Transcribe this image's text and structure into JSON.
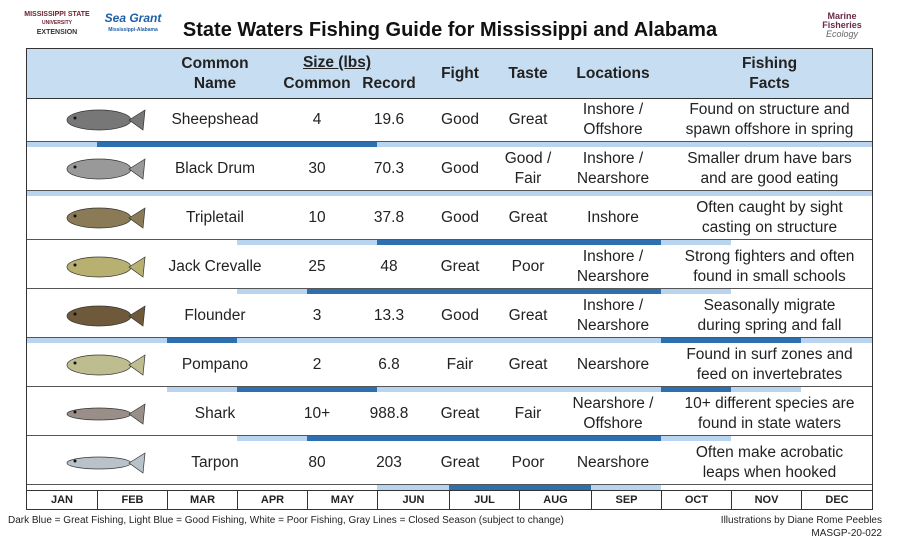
{
  "header": {
    "logo_left": [
      "MISSISSIPPI STATE",
      "UNIVERSITY",
      "EXTENSION"
    ],
    "logo_mid": [
      "Sea Grant",
      "Mississippi-Alabama"
    ],
    "title": "State Waters Fishing Guide for Mississippi and Alabama",
    "logo_right": [
      "Marine",
      "Fisheries",
      "Ecology"
    ]
  },
  "table": {
    "columns": {
      "name": "Common\nName",
      "size": "Size (lbs)",
      "common": "Common",
      "record": "Record",
      "fight": "Fight",
      "taste": "Taste",
      "locations": "Locations",
      "facts": "Fishing\nFacts"
    },
    "rows": [
      {
        "name": "Sheepshead",
        "common": "4",
        "record": "19.6",
        "fight": "Good",
        "taste": "Great",
        "locations": "Inshore /\nOffshore",
        "facts": "Found on structure and\nspawn offshore in spring",
        "season": [
          "#b8d4ee",
          "#2e6fb0",
          "#2e6fb0",
          "#2e6fb0",
          "#2e6fb0",
          "#b8d4ee",
          "#b8d4ee",
          "#b8d4ee",
          "#b8d4ee",
          "#b8d4ee",
          "#b8d4ee",
          "#b8d4ee"
        ]
      },
      {
        "name": "Black Drum",
        "common": "30",
        "record": "70.3",
        "fight": "Good",
        "taste": "Good /\nFair",
        "locations": "Inshore /\nNearshore",
        "facts": "Smaller drum have bars\nand are good eating",
        "season": [
          "#b8d4ee",
          "#b8d4ee",
          "#b8d4ee",
          "#b8d4ee",
          "#b8d4ee",
          "#b8d4ee",
          "#b8d4ee",
          "#b8d4ee",
          "#b8d4ee",
          "#b8d4ee",
          "#b8d4ee",
          "#b8d4ee"
        ]
      },
      {
        "name": "Tripletail",
        "common": "10",
        "record": "37.8",
        "fight": "Good",
        "taste": "Great",
        "locations": "Inshore",
        "facts": "Often caught by sight\ncasting on structure",
        "season": [
          "#ffffff",
          "#ffffff",
          "#ffffff",
          "#b8d4ee",
          "#b8d4ee",
          "#2e6fb0",
          "#2e6fb0",
          "#2e6fb0",
          "#2e6fb0",
          "#b8d4ee",
          "#ffffff",
          "#ffffff"
        ]
      },
      {
        "name": "Jack Crevalle",
        "common": "25",
        "record": "48",
        "fight": "Great",
        "taste": "Poor",
        "locations": "Inshore /\nNearshore",
        "facts": "Strong fighters and often\nfound in small schools",
        "season": [
          "#ffffff",
          "#ffffff",
          "#ffffff",
          "#b8d4ee",
          "#2e6fb0",
          "#2e6fb0",
          "#2e6fb0",
          "#2e6fb0",
          "#2e6fb0",
          "#b8d4ee",
          "#ffffff",
          "#ffffff"
        ]
      },
      {
        "name": "Flounder",
        "common": "3",
        "record": "13.3",
        "fight": "Good",
        "taste": "Great",
        "locations": "Inshore /\nNearshore",
        "facts": "Seasonally migrate\nduring spring and fall",
        "season": [
          "#b8d4ee",
          "#b8d4ee",
          "#2e6fb0",
          "#b8d4ee",
          "#b8d4ee",
          "#b8d4ee",
          "#b8d4ee",
          "#b8d4ee",
          "#b8d4ee",
          "#2e6fb0",
          "#2e6fb0",
          "#b8d4ee"
        ]
      },
      {
        "name": "Pompano",
        "common": "2",
        "record": "6.8",
        "fight": "Fair",
        "taste": "Great",
        "locations": "Nearshore",
        "facts": "Found in surf zones and\nfeed on invertebrates",
        "season": [
          "#ffffff",
          "#ffffff",
          "#b8d4ee",
          "#2e6fb0",
          "#2e6fb0",
          "#b8d4ee",
          "#b8d4ee",
          "#b8d4ee",
          "#b8d4ee",
          "#2e6fb0",
          "#b8d4ee",
          "#ffffff"
        ]
      },
      {
        "name": "Shark",
        "common": "10+",
        "record": "988.8",
        "fight": "Great",
        "taste": "Fair",
        "locations": "Nearshore /\nOffshore",
        "facts": "10+ different species are\nfound in state waters",
        "season": [
          "#ffffff",
          "#ffffff",
          "#ffffff",
          "#b8d4ee",
          "#2e6fb0",
          "#2e6fb0",
          "#2e6fb0",
          "#2e6fb0",
          "#2e6fb0",
          "#b8d4ee",
          "#ffffff",
          "#ffffff"
        ]
      },
      {
        "name": "Tarpon",
        "common": "80",
        "record": "203",
        "fight": "Great",
        "taste": "Poor",
        "locations": "Nearshore",
        "facts": "Often make acrobatic\nleaps when hooked",
        "season": [
          "#ffffff",
          "#ffffff",
          "#ffffff",
          "#ffffff",
          "#ffffff",
          "#b8d4ee",
          "#2e6fb0",
          "#2e6fb0",
          "#b8d4ee",
          "#ffffff",
          "#ffffff",
          "#ffffff"
        ]
      }
    ],
    "months": [
      "JAN",
      "FEB",
      "MAR",
      "APR",
      "MAY",
      "JUN",
      "JUL",
      "AUG",
      "SEP",
      "OCT",
      "NOV",
      "DEC"
    ]
  },
  "footer": {
    "legend": "Dark Blue = Great Fishing, Light Blue = Good Fishing, White = Poor Fishing, Gray Lines = Closed Season (subject to change)",
    "credit": "Illustrations by Diane Rome Peebles",
    "code": "MASGP-20-022"
  }
}
